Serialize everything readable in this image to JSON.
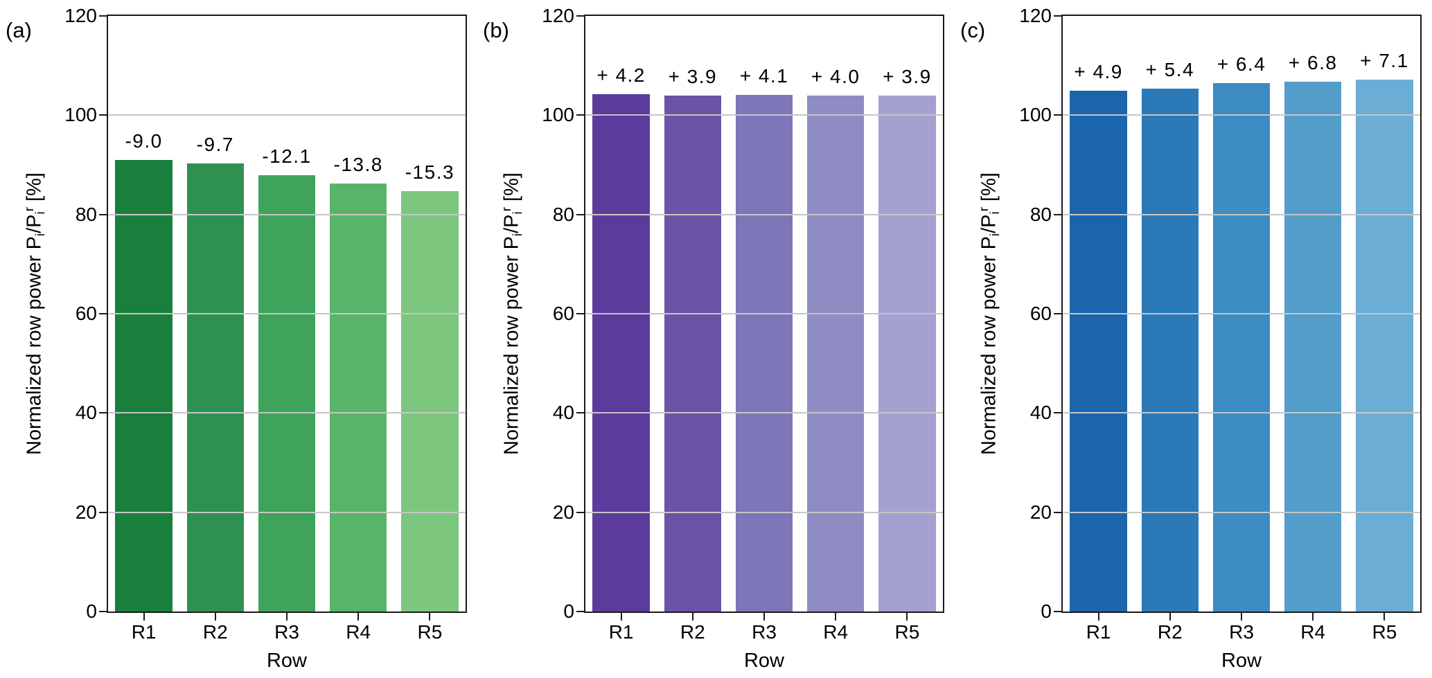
{
  "figure": {
    "xlabel": "Row",
    "ylabel": {
      "prefix": "Normalized row power P",
      "sub1": "i",
      "mid": "/P",
      "sub2": "i",
      "sup2": "r",
      "suffix": " [%]"
    },
    "yticks": [
      0,
      20,
      40,
      60,
      80,
      100,
      120
    ],
    "gridlines": [
      20,
      40,
      60,
      80,
      100
    ],
    "colors": {
      "grid": "#c6c6c6",
      "axis": "#1a1a1a",
      "text": "#000000",
      "background": "#ffffff"
    }
  },
  "chart_data": [
    {
      "type": "bar",
      "panel_label": "(a)",
      "categories": [
        "R1",
        "R2",
        "R3",
        "R4",
        "R5"
      ],
      "values": [
        91.0,
        90.3,
        87.9,
        86.2,
        84.7
      ],
      "bar_labels": [
        "-9.0",
        "-9.7",
        "-12.1",
        "-13.8",
        "-15.3"
      ],
      "bar_colors": [
        "#1a7e3d",
        "#2e9151",
        "#3fa35b",
        "#57b468",
        "#7cc67e"
      ],
      "title": "",
      "xlabel": "Row",
      "ylabel": "Normalized row power Pᵢ/Pᵢʳ [%]",
      "ylim": [
        0,
        120
      ],
      "grid": "on"
    },
    {
      "type": "bar",
      "panel_label": "(b)",
      "categories": [
        "R1",
        "R2",
        "R3",
        "R4",
        "R5"
      ],
      "values": [
        104.2,
        103.9,
        104.1,
        104.0,
        103.9
      ],
      "bar_labels": [
        "+ 4.2",
        "+ 3.9",
        "+ 4.1",
        "+ 4.0",
        "+ 3.9"
      ],
      "bar_colors": [
        "#5b3c9c",
        "#6b53a6",
        "#7d76b8",
        "#8f8bc3",
        "#a4a0d0"
      ],
      "title": "",
      "xlabel": "Row",
      "ylabel": "Normalized row power Pᵢ/Pᵢʳ [%]",
      "ylim": [
        0,
        120
      ],
      "grid": "on"
    },
    {
      "type": "bar",
      "panel_label": "(c)",
      "categories": [
        "R1",
        "R2",
        "R3",
        "R4",
        "R5"
      ],
      "values": [
        104.9,
        105.4,
        106.4,
        106.8,
        107.1
      ],
      "bar_labels": [
        "+ 4.9",
        "+ 5.4",
        "+ 6.4",
        "+ 6.8",
        "+ 7.1"
      ],
      "bar_colors": [
        "#1a65ac",
        "#2c79b7",
        "#3d8cc3",
        "#539dcb",
        "#6badd5"
      ],
      "title": "",
      "xlabel": "Row",
      "ylabel": "Normalized row power Pᵢ/Pᵢʳ [%]",
      "ylim": [
        0,
        120
      ],
      "grid": "on"
    }
  ]
}
